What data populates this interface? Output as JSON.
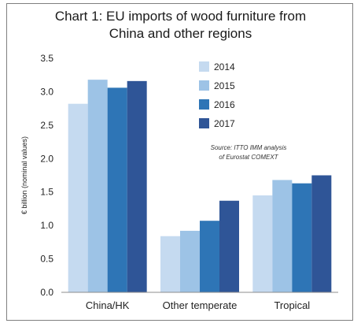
{
  "chart_data": {
    "type": "bar",
    "title": "Chart 1: EU imports of wood furniture from\nChina and other regions",
    "ylabel": "€ billion (nominal values)",
    "xlabel": "",
    "ylim": [
      0,
      3.5
    ],
    "yticks": [
      "0.0",
      "0.5",
      "1.0",
      "1.5",
      "2.0",
      "2.5",
      "3.0",
      "3.5"
    ],
    "grid": false,
    "legend_placement": "top-center",
    "categories": [
      "China/HK",
      "Other temperate",
      "Tropical"
    ],
    "series": [
      {
        "name": "2014",
        "color": "#c5daf0",
        "values": [
          2.82,
          0.84,
          1.45
        ]
      },
      {
        "name": "2015",
        "color": "#9dc3e6",
        "values": [
          3.18,
          0.92,
          1.68
        ]
      },
      {
        "name": "2016",
        "color": "#2e75b6",
        "values": [
          3.06,
          1.07,
          1.63
        ]
      },
      {
        "name": "2017",
        "color": "#2f5597",
        "values": [
          3.16,
          1.37,
          1.75
        ]
      }
    ],
    "annotation": [
      "Source: ITTO IMM analysis",
      "of Eurostat COMEXT"
    ]
  }
}
